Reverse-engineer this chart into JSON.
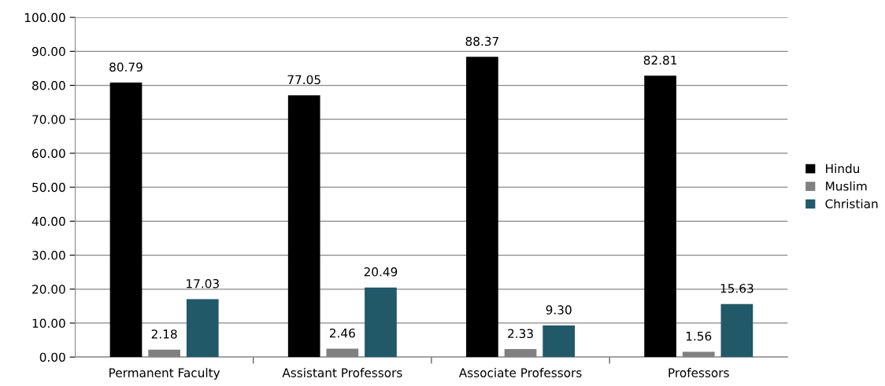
{
  "chart_data": {
    "type": "bar",
    "categories": [
      "Permanent Faculty",
      "Assistant Professors",
      "Associate Professors",
      "Professors"
    ],
    "series": [
      {
        "name": "Hindu",
        "color": "#000000",
        "values": [
          80.79,
          77.05,
          88.37,
          82.81
        ]
      },
      {
        "name": "Muslim",
        "color": "#808080",
        "values": [
          2.18,
          2.46,
          2.33,
          1.56
        ]
      },
      {
        "name": "Christian",
        "color": "#215968",
        "values": [
          17.03,
          20.49,
          9.3,
          15.63
        ]
      }
    ],
    "value_labels": [
      [
        "80.79",
        "77.05",
        "88.37",
        "82.81"
      ],
      [
        "2.18",
        "2.46",
        "2.33",
        "1.56"
      ],
      [
        "17.03",
        "20.49",
        "9.30",
        "15.63"
      ]
    ],
    "ylim": [
      0,
      100
    ],
    "yticks": [
      {
        "value": 0,
        "label": "0.00"
      },
      {
        "value": 10,
        "label": "10.00"
      },
      {
        "value": 20,
        "label": "20.00"
      },
      {
        "value": 30,
        "label": "30.00"
      },
      {
        "value": 40,
        "label": "40.00"
      },
      {
        "value": 50,
        "label": "50.00"
      },
      {
        "value": 60,
        "label": "60.00"
      },
      {
        "value": 70,
        "label": "70.00"
      },
      {
        "value": 80,
        "label": "80.00"
      },
      {
        "value": 90,
        "label": "90.00"
      },
      {
        "value": 100,
        "label": "100.00"
      }
    ],
    "grid": "y",
    "legend": "right"
  }
}
